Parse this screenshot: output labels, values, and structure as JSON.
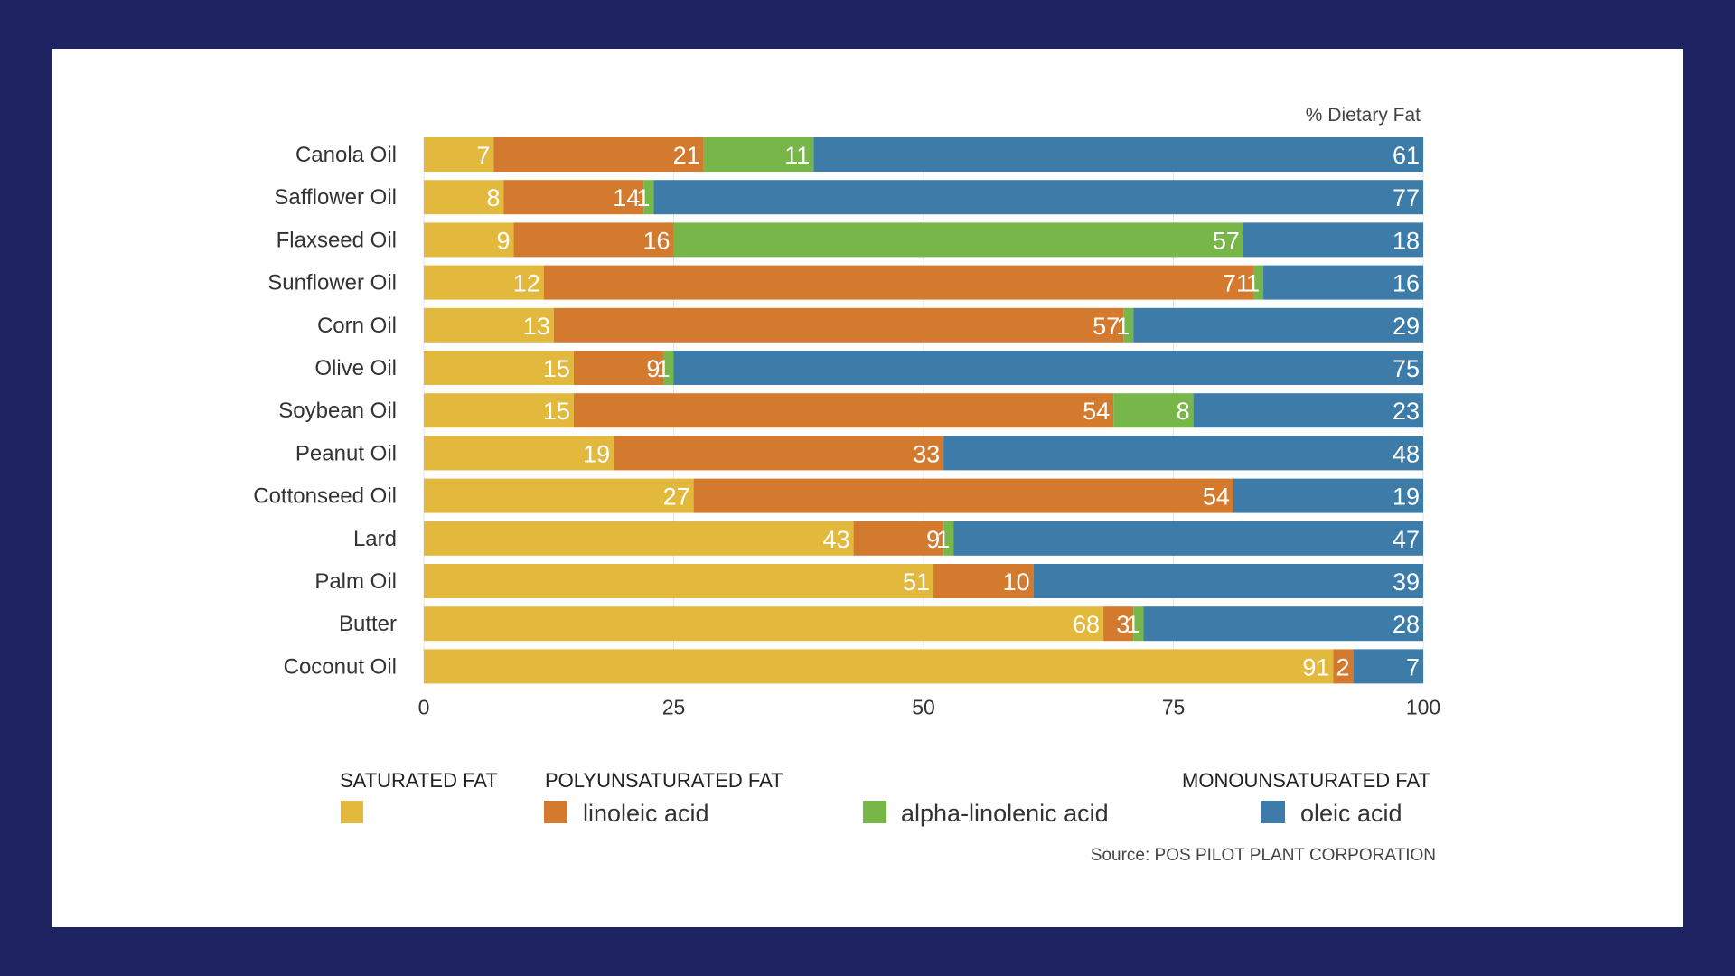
{
  "chart_data": {
    "type": "bar",
    "orientation": "horizontal",
    "stacked": true,
    "unit_label": "% Dietary Fat",
    "xlim": [
      0,
      100
    ],
    "x_ticks": [
      "0",
      "25",
      "50",
      "75",
      "100"
    ],
    "categories": [
      "Canola Oil",
      "Safflower Oil",
      "Flaxseed Oil",
      "Sunflower Oil",
      "Corn Oil",
      "Olive Oil",
      "Soybean Oil",
      "Peanut Oil",
      "Cottonseed Oil",
      "Lard",
      "Palm Oil",
      "Butter",
      "Coconut Oil"
    ],
    "series": [
      {
        "name": "saturated",
        "color": "#e2b83d",
        "values": [
          7,
          8,
          9,
          12,
          13,
          15,
          15,
          19,
          27,
          43,
          51,
          68,
          91
        ]
      },
      {
        "name": "linoleic acid",
        "color": "#d47a2e",
        "values": [
          21,
          14,
          16,
          71,
          57,
          9,
          54,
          33,
          54,
          9,
          10,
          3,
          2
        ]
      },
      {
        "name": "alpha-linolenic acid",
        "color": "#77b649",
        "values": [
          11,
          1,
          57,
          1,
          1,
          1,
          8,
          null,
          null,
          1,
          null,
          1,
          null
        ]
      },
      {
        "name": "oleic acid",
        "color": "#3d7ca8",
        "values": [
          61,
          77,
          18,
          16,
          29,
          75,
          23,
          48,
          19,
          47,
          39,
          28,
          7
        ]
      }
    ],
    "grid": true
  },
  "legend": {
    "saturated_heading": "SATURATED FAT",
    "poly_heading": "POLYUNSATURATED FAT",
    "mono_heading": "MONOUNSATURATED FAT",
    "linoleic_label": "linoleic acid",
    "alpha_label": "alpha-linolenic acid",
    "oleic_label": "oleic acid"
  },
  "source": "Source: POS PILOT PLANT CORPORATION"
}
